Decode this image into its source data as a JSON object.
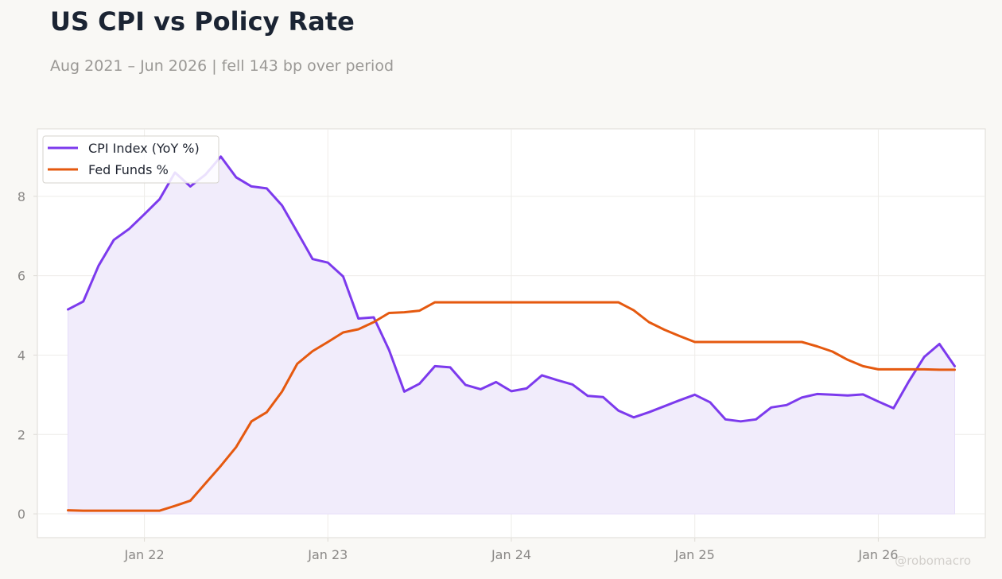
{
  "header": {
    "title": "US CPI vs Policy Rate",
    "subtitle": "Aug 2021 – Jun 2026 | fell 143 bp over period"
  },
  "watermark": "@robomacro",
  "colors": {
    "cpi": "#7c3aed",
    "cpi_fill": "#f1ecfb",
    "fed": "#e5590f",
    "grid": "#eeece9",
    "frame": "#dedbd6",
    "plot_bg": "#ffffff"
  },
  "chart_data": {
    "type": "line",
    "x_axis": {
      "type": "date",
      "range": [
        "2021-06",
        "2026-08"
      ],
      "ticks": [
        {
          "date": "2022-01",
          "label": "Jan 22"
        },
        {
          "date": "2023-01",
          "label": "Jan 23"
        },
        {
          "date": "2024-01",
          "label": "Jan 24"
        },
        {
          "date": "2025-01",
          "label": "Jan 25"
        },
        {
          "date": "2026-01",
          "label": "Jan 26"
        }
      ]
    },
    "y_axis": {
      "range": [
        -0.6,
        9.7
      ],
      "ticks": [
        0,
        2,
        4,
        6,
        8
      ]
    },
    "grid": true,
    "legend_position": "top-left",
    "x": [
      "2021-08",
      "2021-09",
      "2021-10",
      "2021-11",
      "2021-12",
      "2022-01",
      "2022-02",
      "2022-03",
      "2022-04",
      "2022-05",
      "2022-06",
      "2022-07",
      "2022-08",
      "2022-09",
      "2022-10",
      "2022-11",
      "2022-12",
      "2023-01",
      "2023-02",
      "2023-03",
      "2023-04",
      "2023-05",
      "2023-06",
      "2023-07",
      "2023-08",
      "2023-09",
      "2023-10",
      "2023-11",
      "2023-12",
      "2024-01",
      "2024-02",
      "2024-03",
      "2024-04",
      "2024-05",
      "2024-06",
      "2024-07",
      "2024-08",
      "2024-09",
      "2024-10",
      "2024-11",
      "2024-12",
      "2025-01",
      "2025-02",
      "2025-03",
      "2025-04",
      "2025-05",
      "2025-06",
      "2025-07",
      "2025-08",
      "2025-09",
      "2025-10",
      "2025-11",
      "2025-12",
      "2026-01",
      "2026-02",
      "2026-03",
      "2026-04",
      "2026-05",
      "2026-06"
    ],
    "series": [
      {
        "name": "CPI Index (YoY %)",
        "color": "#7c3aed",
        "filled": true,
        "values": [
          5.15,
          5.35,
          6.25,
          6.9,
          7.18,
          7.55,
          7.93,
          8.6,
          8.25,
          8.55,
          9.0,
          8.48,
          8.25,
          8.2,
          7.77,
          7.1,
          6.42,
          6.33,
          5.98,
          4.92,
          4.95,
          4.13,
          3.08,
          3.28,
          3.72,
          3.69,
          3.25,
          3.14,
          3.32,
          3.09,
          3.16,
          3.49,
          3.37,
          3.26,
          2.97,
          2.94,
          2.6,
          2.43,
          2.56,
          2.71,
          2.86,
          3.0,
          2.81,
          2.38,
          2.33,
          2.38,
          2.68,
          2.74,
          2.93,
          3.02,
          3.0,
          2.98,
          3.01,
          2.83,
          2.66,
          3.34,
          3.95,
          4.28,
          3.72
        ]
      },
      {
        "name": "Fed Funds %",
        "color": "#e5590f",
        "filled": false,
        "values": [
          0.09,
          0.08,
          0.08,
          0.08,
          0.08,
          0.08,
          0.08,
          0.2,
          0.33,
          0.77,
          1.21,
          1.68,
          2.33,
          2.56,
          3.08,
          3.78,
          4.1,
          4.33,
          4.57,
          4.65,
          4.83,
          5.06,
          5.08,
          5.12,
          5.33,
          5.33,
          5.33,
          5.33,
          5.33,
          5.33,
          5.33,
          5.33,
          5.33,
          5.33,
          5.33,
          5.33,
          5.33,
          5.13,
          4.83,
          4.64,
          4.48,
          4.33,
          4.33,
          4.33,
          4.33,
          4.33,
          4.33,
          4.33,
          4.33,
          4.22,
          4.09,
          3.88,
          3.72,
          3.64,
          3.64,
          3.64,
          3.64,
          3.63,
          3.63
        ]
      }
    ]
  }
}
